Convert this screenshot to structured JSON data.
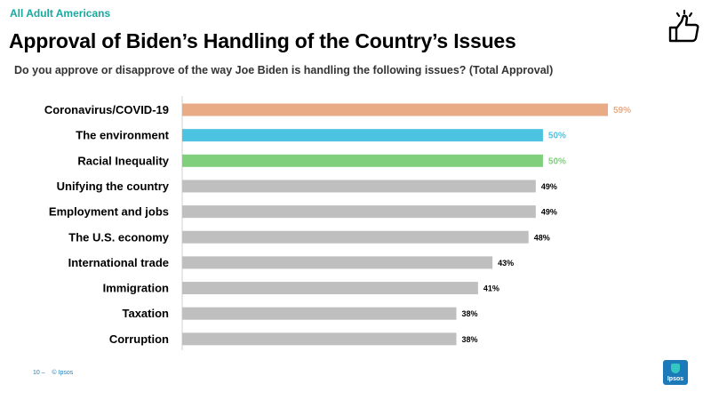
{
  "header": {
    "kicker": "All Adult Americans",
    "title": "Approval of Biden’s Handling of the Country’s Issues",
    "subtitle": "Do you approve or disapprove of the way Joe Biden is handling the following issues? (Total Approval)"
  },
  "footer": {
    "page": "10 –",
    "copyright": "© Ipsos",
    "logo_text": "Ipsos"
  },
  "colors": {
    "accent": "#19a89e",
    "gray_bar": "#bfbfbf",
    "covid": "#e8ab86",
    "environment": "#4cc3e0",
    "racial": "#7fcf7d"
  },
  "icons": {
    "thumb": "thumbs-up-icon"
  },
  "chart_data": {
    "type": "bar",
    "orientation": "horizontal",
    "title": "",
    "xlabel": "",
    "ylabel": "",
    "xlim": [
      0,
      100
    ],
    "categories": [
      "Coronavirus/COVID-19",
      "The environment",
      "Racial Inequality",
      "Unifying the country",
      "Employment and jobs",
      "The U.S. economy",
      "International trade",
      "Immigration",
      "Taxation",
      "Corruption"
    ],
    "values": [
      59,
      50,
      50,
      49,
      49,
      48,
      43,
      41,
      38,
      38
    ],
    "value_labels": [
      "59%",
      "50%",
      "50%",
      "49%",
      "49%",
      "48%",
      "43%",
      "41%",
      "38%",
      "38%"
    ],
    "bar_colors": [
      "#e8ab86",
      "#4cc3e0",
      "#7fcf7d",
      "#bfbfbf",
      "#bfbfbf",
      "#bfbfbf",
      "#bfbfbf",
      "#bfbfbf",
      "#bfbfbf",
      "#bfbfbf"
    ],
    "label_colors": [
      "#e8ab86",
      "#4cc3e0",
      "#7fcf7d",
      "#000000",
      "#000000",
      "#000000",
      "#000000",
      "#000000",
      "#000000",
      "#000000"
    ],
    "grid": false,
    "legend": "none"
  }
}
